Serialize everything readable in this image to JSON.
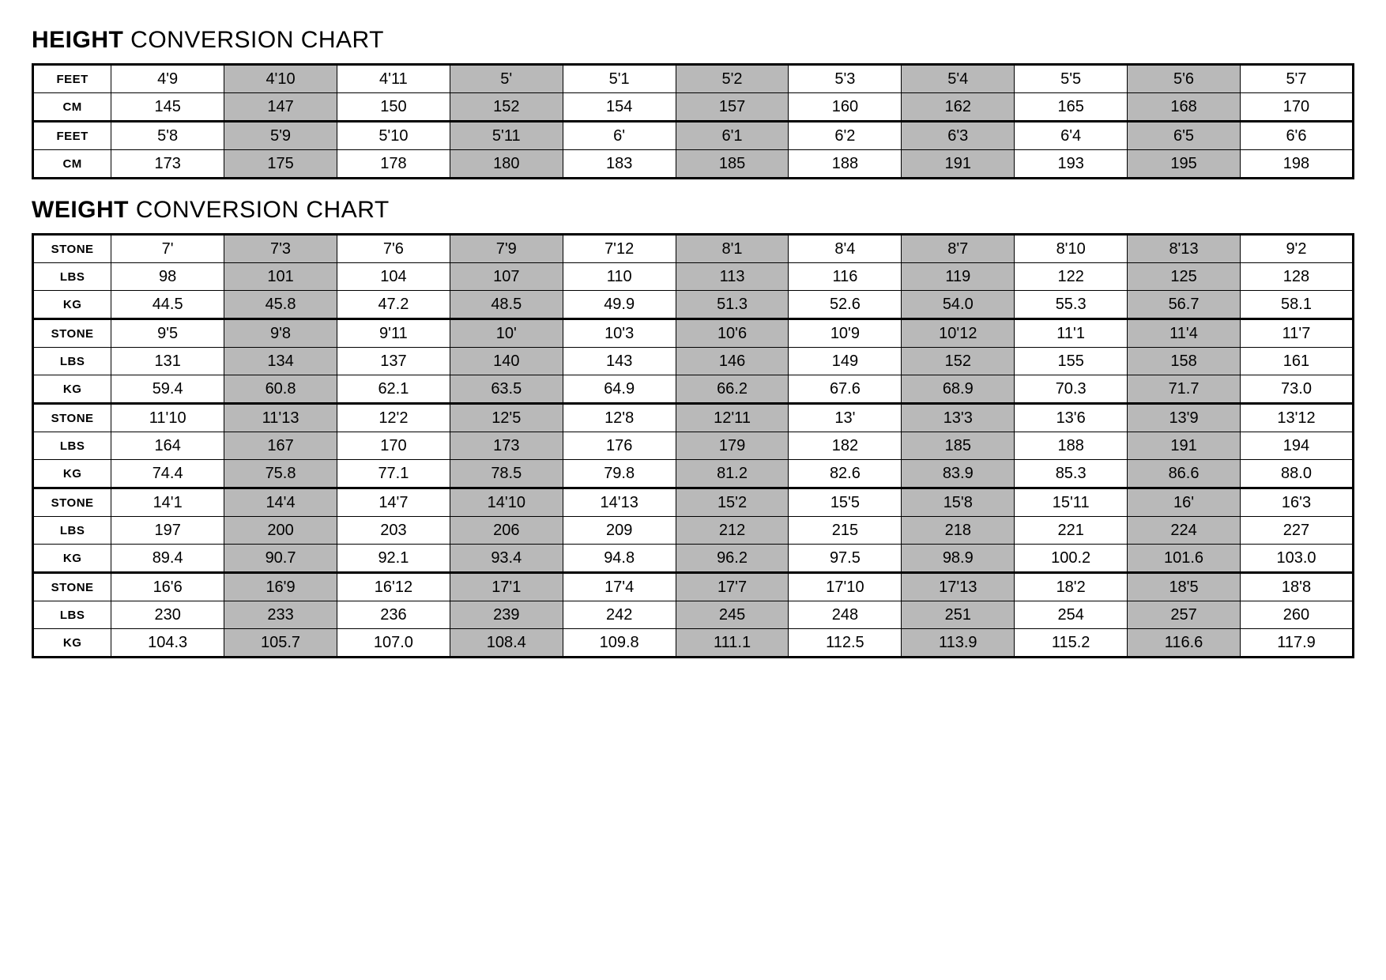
{
  "height": {
    "title_bold": "HEIGHT",
    "title_rest": " CONVERSION CHART",
    "row_labels": [
      "FEET",
      "CM"
    ],
    "groups": [
      {
        "feet": [
          "4'9",
          "4'10",
          "4'11",
          "5'",
          "5'1",
          "5'2",
          "5'3",
          "5'4",
          "5'5",
          "5'6",
          "5'7"
        ],
        "cm": [
          "145",
          "147",
          "150",
          "152",
          "154",
          "157",
          "160",
          "162",
          "165",
          "168",
          "170"
        ]
      },
      {
        "feet": [
          "5'8",
          "5'9",
          "5'10",
          "5'11",
          "6'",
          "6'1",
          "6'2",
          "6'3",
          "6'4",
          "6'5",
          "6'6"
        ],
        "cm": [
          "173",
          "175",
          "178",
          "180",
          "183",
          "185",
          "188",
          "191",
          "193",
          "195",
          "198"
        ]
      }
    ]
  },
  "weight": {
    "title_bold": "WEIGHT",
    "title_rest": " CONVERSION CHART",
    "row_labels": [
      "STONE",
      "LBS",
      "KG"
    ],
    "groups": [
      {
        "stone": [
          "7'",
          "7'3",
          "7'6",
          "7'9",
          "7'12",
          "8'1",
          "8'4",
          "8'7",
          "8'10",
          "8'13",
          "9'2"
        ],
        "lbs": [
          "98",
          "101",
          "104",
          "107",
          "110",
          "113",
          "116",
          "119",
          "122",
          "125",
          "128"
        ],
        "kg": [
          "44.5",
          "45.8",
          "47.2",
          "48.5",
          "49.9",
          "51.3",
          "52.6",
          "54.0",
          "55.3",
          "56.7",
          "58.1"
        ]
      },
      {
        "stone": [
          "9'5",
          "9'8",
          "9'11",
          "10'",
          "10'3",
          "10'6",
          "10'9",
          "10'12",
          "11'1",
          "11'4",
          "11'7"
        ],
        "lbs": [
          "131",
          "134",
          "137",
          "140",
          "143",
          "146",
          "149",
          "152",
          "155",
          "158",
          "161"
        ],
        "kg": [
          "59.4",
          "60.8",
          "62.1",
          "63.5",
          "64.9",
          "66.2",
          "67.6",
          "68.9",
          "70.3",
          "71.7",
          "73.0"
        ]
      },
      {
        "stone": [
          "11'10",
          "11'13",
          "12'2",
          "12'5",
          "12'8",
          "12'11",
          "13'",
          "13'3",
          "13'6",
          "13'9",
          "13'12"
        ],
        "lbs": [
          "164",
          "167",
          "170",
          "173",
          "176",
          "179",
          "182",
          "185",
          "188",
          "191",
          "194"
        ],
        "kg": [
          "74.4",
          "75.8",
          "77.1",
          "78.5",
          "79.8",
          "81.2",
          "82.6",
          "83.9",
          "85.3",
          "86.6",
          "88.0"
        ]
      },
      {
        "stone": [
          "14'1",
          "14'4",
          "14'7",
          "14'10",
          "14'13",
          "15'2",
          "15'5",
          "15'8",
          "15'11",
          "16'",
          "16'3"
        ],
        "lbs": [
          "197",
          "200",
          "203",
          "206",
          "209",
          "212",
          "215",
          "218",
          "221",
          "224",
          "227"
        ],
        "kg": [
          "89.4",
          "90.7",
          "92.1",
          "93.4",
          "94.8",
          "96.2",
          "97.5",
          "98.9",
          "100.2",
          "101.6",
          "103.0"
        ]
      },
      {
        "stone": [
          "16'6",
          "16'9",
          "16'12",
          "17'1",
          "17'4",
          "17'7",
          "17'10",
          "17'13",
          "18'2",
          "18'5",
          "18'8"
        ],
        "lbs": [
          "230",
          "233",
          "236",
          "239",
          "242",
          "245",
          "248",
          "251",
          "254",
          "257",
          "260"
        ],
        "kg": [
          "104.3",
          "105.7",
          "107.0",
          "108.4",
          "109.8",
          "111.1",
          "112.5",
          "113.9",
          "115.2",
          "116.6",
          "117.9"
        ]
      }
    ]
  },
  "style": {
    "shaded_color": "#b9b9b9",
    "background_color": "#ffffff",
    "border_color": "#000000",
    "shaded_columns": [
      1,
      3,
      5,
      7,
      9
    ]
  }
}
